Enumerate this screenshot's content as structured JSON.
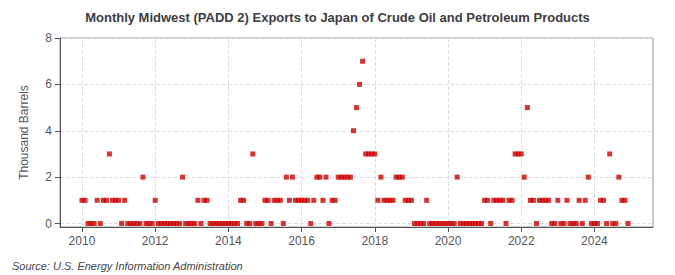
{
  "chart_data": {
    "type": "scatter",
    "title": "Monthly Midwest (PADD 2) Exports to Japan of Crude Oil and Petroleum Products",
    "ylabel": "Thousand Barrels",
    "annotations": [
      "Source: U.S. Energy Information Administration"
    ],
    "color": "#CC0000",
    "marker": "square",
    "grid": true,
    "xlim": [
      2009.4,
      2025.6
    ],
    "xticks": [
      2010,
      2012,
      2014,
      2016,
      2018,
      2020,
      2022,
      2024
    ],
    "ylim": [
      -0.15,
      8
    ],
    "yticks": [
      0,
      2,
      4,
      6,
      8
    ],
    "x": [
      2010.0,
      2010.083,
      2010.167,
      2010.25,
      2010.333,
      2010.417,
      2010.5,
      2010.583,
      2010.667,
      2010.75,
      2010.833,
      2010.917,
      2011.0,
      2011.083,
      2011.167,
      2011.25,
      2011.333,
      2011.417,
      2011.5,
      2011.583,
      2011.667,
      2011.75,
      2011.833,
      2011.917,
      2012.0,
      2012.083,
      2012.167,
      2012.25,
      2012.333,
      2012.417,
      2012.5,
      2012.583,
      2012.667,
      2012.75,
      2012.833,
      2012.917,
      2013.0,
      2013.083,
      2013.167,
      2013.25,
      2013.333,
      2013.417,
      2013.5,
      2013.583,
      2013.667,
      2013.75,
      2013.833,
      2013.917,
      2014.0,
      2014.083,
      2014.167,
      2014.25,
      2014.333,
      2014.417,
      2014.5,
      2014.583,
      2014.667,
      2014.75,
      2014.833,
      2014.917,
      2015.0,
      2015.083,
      2015.167,
      2015.25,
      2015.333,
      2015.417,
      2015.5,
      2015.583,
      2015.667,
      2015.75,
      2015.833,
      2015.917,
      2016.0,
      2016.083,
      2016.167,
      2016.25,
      2016.333,
      2016.417,
      2016.5,
      2016.583,
      2016.667,
      2016.75,
      2016.833,
      2016.917,
      2017.0,
      2017.083,
      2017.167,
      2017.25,
      2017.333,
      2017.417,
      2017.5,
      2017.583,
      2017.667,
      2017.75,
      2017.833,
      2017.917,
      2018.0,
      2018.083,
      2018.167,
      2018.25,
      2018.333,
      2018.417,
      2018.5,
      2018.583,
      2018.667,
      2018.75,
      2018.833,
      2018.917,
      2019.0,
      2019.083,
      2019.167,
      2019.25,
      2019.333,
      2019.417,
      2019.5,
      2019.583,
      2019.667,
      2019.75,
      2019.833,
      2019.917,
      2020.0,
      2020.083,
      2020.167,
      2020.25,
      2020.333,
      2020.417,
      2020.5,
      2020.583,
      2020.667,
      2020.75,
      2020.833,
      2020.917,
      2021.0,
      2021.083,
      2021.167,
      2021.25,
      2021.333,
      2021.417,
      2021.5,
      2021.583,
      2021.667,
      2021.75,
      2021.833,
      2021.917,
      2022.0,
      2022.083,
      2022.167,
      2022.25,
      2022.333,
      2022.417,
      2022.5,
      2022.583,
      2022.667,
      2022.75,
      2022.833,
      2022.917,
      2023.0,
      2023.083,
      2023.167,
      2023.25,
      2023.333,
      2023.417,
      2023.5,
      2023.583,
      2023.667,
      2023.75,
      2023.833,
      2023.917,
      2024.0,
      2024.083,
      2024.167,
      2024.25,
      2024.333,
      2024.417,
      2024.5,
      2024.583,
      2024.667,
      2024.75,
      2024.833,
      2024.917
    ],
    "values": [
      1,
      1,
      0,
      0,
      0,
      1,
      0,
      1,
      1,
      3,
      1,
      1,
      1,
      0,
      1,
      0,
      0,
      0,
      0,
      0,
      2,
      0,
      0,
      0,
      1,
      0,
      0,
      0,
      0,
      0,
      0,
      0,
      0,
      2,
      0,
      0,
      0,
      0,
      1,
      0,
      1,
      1,
      0,
      0,
      0,
      0,
      0,
      0,
      0,
      0,
      0,
      0,
      1,
      1,
      0,
      0,
      3,
      0,
      0,
      0,
      1,
      1,
      0,
      1,
      1,
      1,
      0,
      2,
      1,
      2,
      1,
      1,
      1,
      1,
      1,
      0,
      1,
      2,
      2,
      1,
      2,
      0,
      1,
      1,
      2,
      2,
      2,
      2,
      2,
      4,
      5,
      6,
      7,
      3,
      3,
      3,
      3,
      1,
      2,
      1,
      1,
      1,
      1,
      2,
      2,
      2,
      1,
      1,
      1,
      0,
      0,
      0,
      0,
      1,
      0,
      0,
      0,
      0,
      0,
      0,
      0,
      0,
      0,
      2,
      0,
      0,
      0,
      0,
      0,
      0,
      0,
      0,
      1,
      1,
      0,
      1,
      1,
      1,
      1,
      0,
      1,
      1,
      3,
      3,
      3,
      2,
      5,
      1,
      1,
      0,
      1,
      1,
      1,
      1,
      0,
      0,
      1,
      0,
      0,
      1,
      0,
      0,
      0,
      1,
      0,
      1,
      2,
      0,
      0,
      0,
      1,
      1,
      0,
      3,
      0,
      0,
      2,
      1,
      1,
      0
    ]
  }
}
